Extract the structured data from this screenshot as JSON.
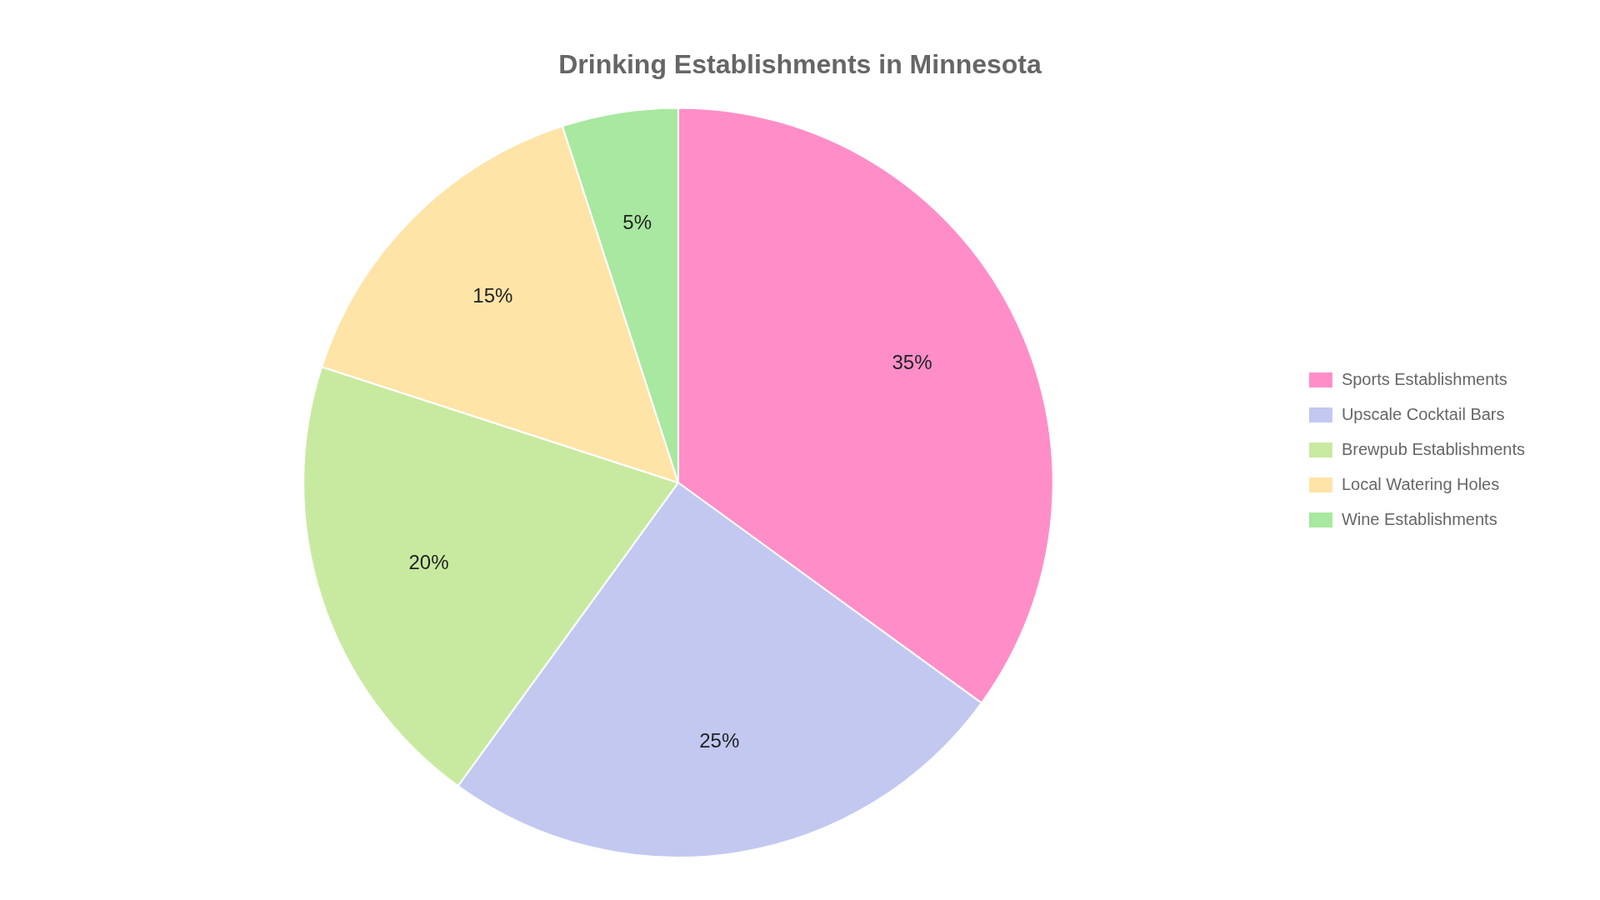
{
  "chart_data": {
    "type": "pie",
    "title": "Drinking Establishments in Minnesota",
    "categories": [
      "Sports Establishments",
      "Upscale Cocktail Bars",
      "Brewpub Establishments",
      "Local Watering Holes",
      "Wine Establishments"
    ],
    "values": [
      35,
      25,
      20,
      15,
      5
    ],
    "value_labels": [
      "35%",
      "25%",
      "20%",
      "15%",
      "5%"
    ],
    "colors": [
      "#FF8EC8",
      "#C2C8F0",
      "#C8EAA0",
      "#FFE4A8",
      "#A8E8A0"
    ],
    "data_labels": true,
    "legend": "right"
  }
}
